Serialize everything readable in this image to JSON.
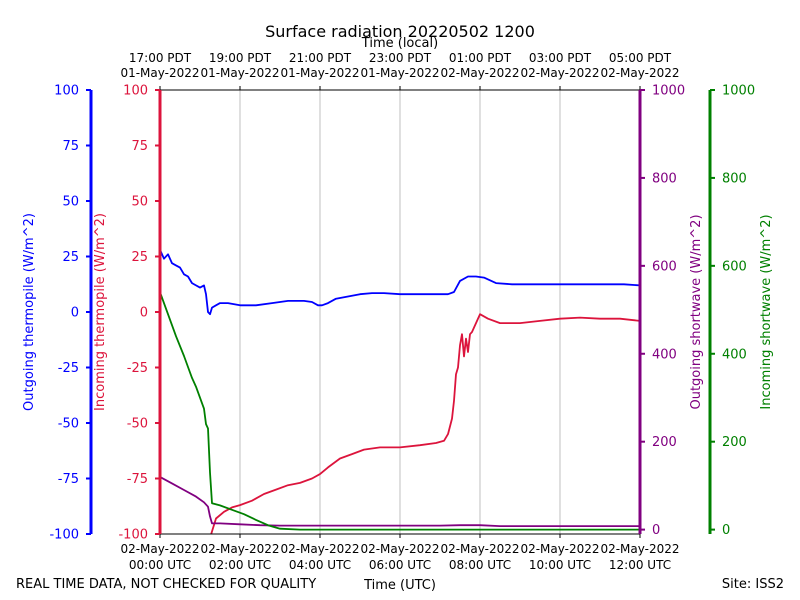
{
  "chart_data": {
    "type": "line",
    "title": "Surface radiation 20220502 1200",
    "top_axis_title": "Time (local)",
    "xlabel": "Time (UTC)",
    "xlim_hours": [
      0,
      12
    ],
    "x_ticks": [
      {
        "hour": 0,
        "utc_date": "02-May-2022",
        "utc_time": "00:00 UTC",
        "local_time": "17:00 PDT",
        "local_date": "01-May-2022"
      },
      {
        "hour": 2,
        "utc_date": "02-May-2022",
        "utc_time": "02:00 UTC",
        "local_time": "19:00 PDT",
        "local_date": "01-May-2022"
      },
      {
        "hour": 4,
        "utc_date": "02-May-2022",
        "utc_time": "04:00 UTC",
        "local_time": "21:00 PDT",
        "local_date": "01-May-2022"
      },
      {
        "hour": 6,
        "utc_date": "02-May-2022",
        "utc_time": "06:00 UTC",
        "local_time": "23:00 PDT",
        "local_date": "01-May-2022"
      },
      {
        "hour": 8,
        "utc_date": "02-May-2022",
        "utc_time": "08:00 UTC",
        "local_time": "01:00 PDT",
        "local_date": "02-May-2022"
      },
      {
        "hour": 10,
        "utc_date": "02-May-2022",
        "utc_time": "10:00 UTC",
        "local_time": "03:00 PDT",
        "local_date": "02-May-2022"
      },
      {
        "hour": 12,
        "utc_date": "02-May-2022",
        "utc_time": "12:00 UTC",
        "local_time": "05:00 PDT",
        "local_date": "02-May-2022"
      }
    ],
    "axes": [
      {
        "key": "out_thermo",
        "label": "Outgoing thermopile (W/m^2)",
        "color": "#0000ff",
        "ylim": [
          -100,
          100
        ],
        "ticks": [
          -100,
          -75,
          -50,
          -25,
          0,
          25,
          50,
          75,
          100
        ]
      },
      {
        "key": "in_thermo",
        "label": "Incoming thermopile (W/m^2)",
        "color": "#dc143c",
        "ylim": [
          -100,
          100
        ],
        "ticks": [
          -100,
          -75,
          -50,
          -25,
          0,
          25,
          50,
          75,
          100
        ]
      },
      {
        "key": "out_sw",
        "label": "Outgoing shortwave (W/m^2)",
        "color": "#800080",
        "ylim": [
          -10,
          1000
        ],
        "ticks": [
          0,
          200,
          400,
          600,
          800,
          1000
        ]
      },
      {
        "key": "in_sw",
        "label": "Incoming shortwave (W/m^2)",
        "color": "#008000",
        "ylim": [
          -10,
          1000
        ],
        "ticks": [
          0,
          200,
          400,
          600,
          800,
          1000
        ]
      }
    ],
    "series": [
      {
        "name": "Outgoing thermopile",
        "axis": "out_thermo",
        "color": "#0000ff",
        "x": [
          0,
          0.1,
          0.2,
          0.3,
          0.4,
          0.5,
          0.6,
          0.7,
          0.8,
          0.9,
          1.0,
          1.1,
          1.15,
          1.2,
          1.25,
          1.3,
          1.4,
          1.5,
          1.7,
          2.0,
          2.4,
          2.8,
          3.2,
          3.4,
          3.6,
          3.8,
          3.95,
          4.05,
          4.2,
          4.4,
          4.7,
          5.0,
          5.3,
          5.6,
          6.0,
          6.4,
          6.8,
          7.2,
          7.35,
          7.5,
          7.7,
          7.9,
          8.1,
          8.4,
          8.8,
          9.2,
          9.6,
          10.0,
          10.4,
          10.8,
          11.2,
          11.6,
          12.0
        ],
        "values": [
          28,
          24,
          26,
          22,
          21,
          20,
          17,
          16,
          13,
          12,
          11,
          12,
          8,
          0,
          -1,
          2,
          3,
          4,
          4,
          3,
          3,
          4,
          5,
          5,
          5,
          4.5,
          3,
          3,
          4,
          6,
          7,
          8,
          8.5,
          8.5,
          8,
          8,
          8,
          8,
          9,
          14,
          16,
          16,
          15.5,
          13,
          12.5,
          12.5,
          12.5,
          12.5,
          12.5,
          12.5,
          12.5,
          12.5,
          12
        ]
      },
      {
        "name": "Incoming thermopile",
        "axis": "in_thermo",
        "color": "#dc143c",
        "x": [
          1.28,
          1.4,
          1.6,
          1.8,
          2.0,
          2.3,
          2.6,
          2.9,
          3.2,
          3.5,
          3.8,
          4.0,
          4.2,
          4.5,
          4.8,
          5.1,
          5.5,
          6.0,
          6.5,
          6.9,
          7.1,
          7.2,
          7.3,
          7.35,
          7.4,
          7.45,
          7.5,
          7.55,
          7.6,
          7.65,
          7.7,
          7.75,
          7.8,
          7.9,
          8.0,
          8.2,
          8.5,
          9.0,
          9.5,
          10.0,
          10.5,
          11.0,
          11.5,
          12.0
        ],
        "values": [
          -100,
          -93,
          -90,
          -88,
          -87,
          -85,
          -82,
          -80,
          -78,
          -77,
          -75,
          -73,
          -70,
          -66,
          -64,
          -62,
          -61,
          -61,
          -60,
          -59,
          -58,
          -55,
          -48,
          -40,
          -28,
          -25,
          -15,
          -10,
          -20,
          -12,
          -18,
          -10,
          -9,
          -5,
          -1,
          -3,
          -5,
          -5,
          -4,
          -3,
          -2.5,
          -3,
          -3,
          -4
        ]
      },
      {
        "name": "Outgoing shortwave",
        "axis": "out_sw",
        "color": "#800080",
        "x": [
          0,
          0.3,
          0.6,
          0.9,
          1.1,
          1.2,
          1.25,
          1.3,
          1.5,
          2.0,
          2.5,
          3.0,
          4.0,
          5.0,
          6.0,
          7.0,
          7.5,
          8.0,
          8.5,
          9.0,
          10.0,
          11.0,
          12.0
        ],
        "values": [
          120,
          105,
          90,
          75,
          62,
          52,
          30,
          14,
          14,
          12,
          10,
          9,
          9,
          9,
          9,
          9,
          10,
          10,
          8,
          8,
          8,
          8,
          8
        ]
      },
      {
        "name": "Incoming shortwave",
        "axis": "in_sw",
        "color": "#008000",
        "x": [
          0,
          0.2,
          0.4,
          0.6,
          0.7,
          0.8,
          0.9,
          1.0,
          1.1,
          1.15,
          1.2,
          1.25,
          1.3,
          1.5,
          1.8,
          2.1,
          2.4,
          2.7,
          3.0,
          3.5,
          4.0,
          5.0,
          6.0,
          7.0,
          8.0,
          9.0,
          10.0,
          11.0,
          12.0
        ],
        "values": [
          540,
          490,
          440,
          395,
          370,
          345,
          325,
          300,
          275,
          240,
          230,
          130,
          60,
          55,
          45,
          35,
          22,
          10,
          2,
          0,
          0,
          0,
          0,
          0,
          0,
          0,
          0,
          0,
          0
        ]
      }
    ],
    "grid": "vertical"
  },
  "footer": {
    "notice": "REAL TIME DATA, NOT CHECKED FOR QUALITY",
    "site": "Site: ISS2"
  }
}
